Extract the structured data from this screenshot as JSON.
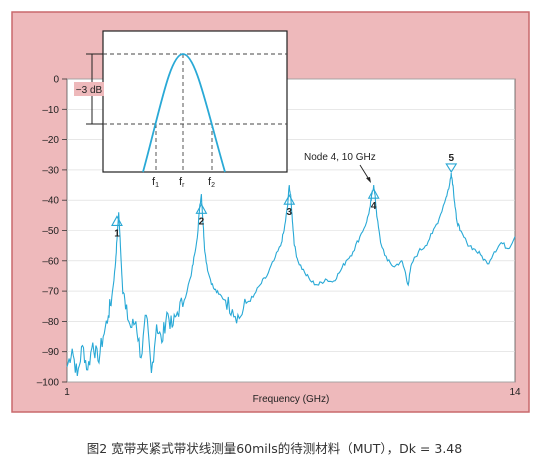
{
  "caption": "图2 宽带夹紧式带状线测量60mils的待测材料（MUT），Dk = 3.48",
  "colors": {
    "frame_bg": "#eeb9bb",
    "frame_border": "#c9696c",
    "plot_bg": "#ffffff",
    "trace": "#29a9d6",
    "marker": "#2aa7d4",
    "grid": "#d9d9d9",
    "text": "#222222"
  },
  "chart_data": {
    "type": "line",
    "xlabel": "Frequency (GHz)",
    "ylabel": "",
    "xlim": [
      1,
      14
    ],
    "ylim": [
      -100,
      0
    ],
    "x_tick_labels": [
      "1",
      "14"
    ],
    "y_ticks": [
      0,
      -10,
      -20,
      -30,
      -40,
      -50,
      -60,
      -70,
      -80,
      -90,
      -100
    ],
    "y_tick_labels": [
      "0",
      "–10",
      "–20",
      "–30",
      "–40",
      "–50",
      "–60",
      "–70",
      "–80",
      "–90",
      "–100"
    ],
    "grid": true,
    "series": [
      {
        "name": "",
        "x": [
          1.0,
          1.15,
          1.3,
          1.45,
          1.6,
          1.75,
          1.9,
          2.05,
          2.2,
          2.3,
          2.4,
          2.45,
          2.5,
          2.55,
          2.6,
          2.7,
          2.85,
          3.0,
          3.15,
          3.3,
          3.45,
          3.6,
          3.75,
          3.9,
          4.05,
          4.2,
          4.4,
          4.6,
          4.7,
          4.8,
          4.85,
          4.9,
          4.95,
          5.0,
          5.1,
          5.25,
          5.4,
          5.6,
          5.8,
          6.0,
          6.2,
          6.4,
          6.6,
          6.8,
          7.0,
          7.2,
          7.3,
          7.4,
          7.45,
          7.5,
          7.55,
          7.6,
          7.7,
          7.9,
          8.1,
          8.3,
          8.5,
          8.7,
          8.9,
          9.1,
          9.3,
          9.5,
          9.7,
          9.8,
          9.85,
          9.9,
          9.95,
          10.0,
          10.1,
          10.3,
          10.5,
          10.7,
          10.8,
          10.9,
          11.0,
          11.2,
          11.4,
          11.6,
          11.8,
          12.0,
          12.1,
          12.15,
          12.2,
          12.25,
          12.3,
          12.4,
          12.6,
          12.8,
          13.0,
          13.2,
          13.4,
          13.6,
          13.8,
          14.0
        ],
        "y": [
          -95,
          -89,
          -98,
          -88,
          -96,
          -87,
          -93,
          -85,
          -78,
          -72,
          -62,
          -53,
          -44,
          -55,
          -66,
          -76,
          -82,
          -80,
          -92,
          -78,
          -97,
          -81,
          -87,
          -77,
          -82,
          -77,
          -73,
          -65,
          -58,
          -50,
          -42,
          -38,
          -48,
          -57,
          -64,
          -69,
          -71,
          -73,
          -76,
          -79,
          -74,
          -72,
          -68,
          -65,
          -60,
          -55,
          -50,
          -42,
          -35,
          -40,
          -48,
          -55,
          -60,
          -64,
          -67,
          -68,
          -66,
          -67,
          -64,
          -60,
          -57,
          -52,
          -47,
          -42,
          -38,
          -35,
          -40,
          -46,
          -54,
          -60,
          -62,
          -60,
          -63,
          -68,
          -61,
          -57,
          -55,
          -51,
          -46,
          -39,
          -35,
          -31,
          -35,
          -41,
          -46,
          -50,
          -54,
          -56,
          -58,
          -61,
          -57,
          -54,
          -56,
          -52
        ]
      }
    ],
    "markers": [
      {
        "label": "1",
        "x": 2.45,
        "y": -48
      },
      {
        "label": "2",
        "x": 4.9,
        "y": -44
      },
      {
        "label": "3",
        "x": 7.45,
        "y": -41
      },
      {
        "label": "4",
        "x": 9.9,
        "y": -39
      },
      {
        "label": "5",
        "x": 12.15,
        "y": -31
      }
    ],
    "annotation": {
      "text": "Node 4, 10 GHz",
      "x": 9.85,
      "y": -35
    },
    "inset": {
      "level_label": "−3 dB",
      "f1_label": "f",
      "f1_sub": "1",
      "fr_label": "f",
      "fr_sub": "r",
      "f2_label": "f",
      "f2_sub": "2"
    }
  }
}
